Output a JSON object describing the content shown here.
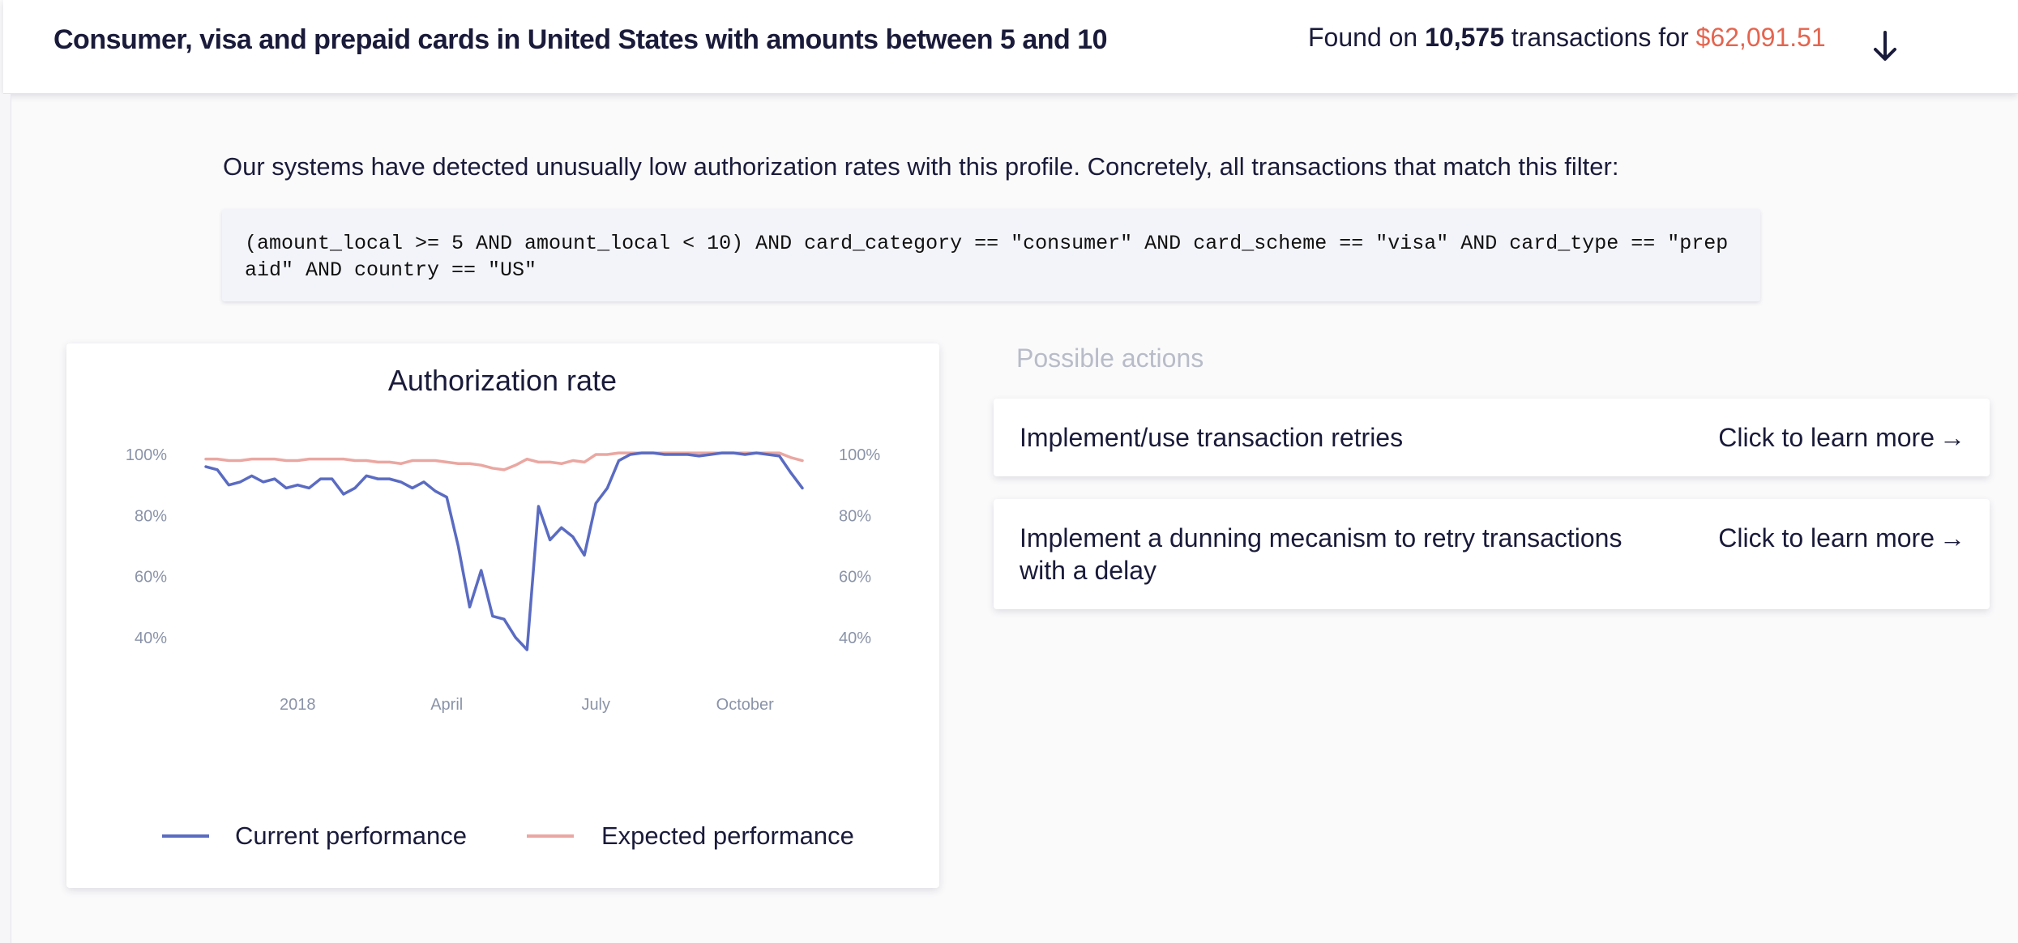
{
  "header": {
    "title": "Consumer, visa and prepaid cards in United States with amounts between 5 and 10",
    "summary_prefix": "Found on",
    "transactions_count": "10,575",
    "summary_middle": "transactions for",
    "amount": "$62,091.51",
    "toggle_icon": "arrow-down-icon"
  },
  "intro_text": "Our systems have detected unusually low authorization rates with this profile. Concretely, all transactions that match this filter:",
  "filter_code": "(amount_local >= 5 AND amount_local < 10) AND card_category == \"consumer\" AND card_scheme == \"visa\" AND card_type == \"prepaid\" AND country == \"US\"",
  "actions": {
    "heading": "Possible actions",
    "items": [
      {
        "label": "Implement/use transaction retries",
        "link": "Click to learn more",
        "arrow": "→"
      },
      {
        "label": "Implement a dunning mecanism to retry transactions with a delay",
        "link": "Click to learn more",
        "arrow": "→"
      }
    ]
  },
  "colors": {
    "current": "#5a6bc2",
    "expected": "#eaa7a1",
    "amount": "#e5644e",
    "text": "#1a1b3a",
    "tick": "#8a93a8"
  },
  "chart_data": {
    "type": "line",
    "title": "Authorization rate",
    "y_ticks": [
      "100%",
      "80%",
      "60%",
      "40%"
    ],
    "y_tick_values": [
      100,
      80,
      60,
      40
    ],
    "ylim": [
      36,
      100
    ],
    "x_ticks": [
      {
        "label": "2018",
        "x": 8
      },
      {
        "label": "April",
        "x": 21
      },
      {
        "label": "July",
        "x": 34
      },
      {
        "label": "October",
        "x": 47
      }
    ],
    "xlim": [
      0,
      52
    ],
    "grid": false,
    "legend_position": "bottom",
    "series": [
      {
        "name": "Current performance",
        "color": "#5a6bc2",
        "values": [
          96,
          95,
          90,
          91,
          93,
          91,
          92,
          89,
          90,
          89,
          92,
          92,
          87,
          89,
          93,
          92,
          92,
          91,
          89,
          91,
          88,
          86,
          70,
          50,
          62,
          47,
          46,
          40,
          36,
          83,
          72,
          76,
          73,
          67,
          84,
          89,
          98,
          100,
          100.5,
          100.5,
          100,
          100,
          100,
          99.5,
          100,
          100.5,
          100.5,
          100,
          100.5,
          100,
          99.5,
          94,
          89
        ]
      },
      {
        "name": "Expected performance",
        "color": "#eaa7a1",
        "values": [
          98.5,
          98.5,
          98,
          98,
          98.5,
          98.5,
          98.5,
          98,
          98,
          98.5,
          98.5,
          98.5,
          98.5,
          98,
          98,
          97.5,
          97.5,
          97,
          98,
          98,
          98,
          97.5,
          97,
          97,
          96.5,
          95.5,
          95,
          96.5,
          98.5,
          97.5,
          97.5,
          97,
          98,
          97.5,
          100,
          100,
          100.5,
          100.5,
          100.5,
          100.5,
          100.5,
          100.5,
          100.5,
          100.5,
          100.5,
          100.5,
          100.5,
          100.5,
          100.5,
          100.5,
          100.5,
          99,
          98
        ]
      }
    ]
  }
}
